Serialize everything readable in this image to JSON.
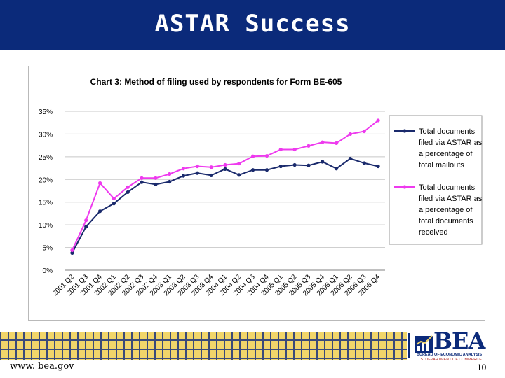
{
  "slide": {
    "title": "ASTAR Success",
    "footer_url": "www. bea.gov",
    "page_number": "10",
    "logo": {
      "name": "BEA",
      "subtitle1": "BUREAU OF ECONOMIC ANALYSIS",
      "subtitle2": "U.S. DEPARTMENT OF COMMERCE"
    },
    "colors": {
      "title_bar": "#0b2a7a",
      "series_mailouts": "#1a2a6c",
      "series_received": "#ee3aee"
    }
  },
  "chart_data": {
    "type": "line",
    "title": "Chart 3: Method of filing used by respondents for Form BE-605",
    "xlabel": "",
    "ylabel": "",
    "ylim": [
      0,
      35
    ],
    "y_ticks": [
      "0%",
      "5%",
      "10%",
      "15%",
      "20%",
      "25%",
      "30%",
      "35%"
    ],
    "grid": true,
    "legend": "right",
    "categories": [
      "2001 Q2",
      "2001 Q3",
      "2001 Q4",
      "2002 Q1",
      "2002 Q2",
      "2002 Q3",
      "2002 Q4",
      "2003 Q1",
      "2003 Q2",
      "2003 Q3",
      "2003 Q4",
      "2004 Q1",
      "2004 Q2",
      "2004 Q3",
      "2004 Q4",
      "2005 Q1",
      "2005 Q2",
      "2005 Q3",
      "2005 Q4",
      "2006 Q1",
      "2006 Q2",
      "2006 Q3",
      "2006 Q4"
    ],
    "series": [
      {
        "name": "Total documents filed via ASTAR as a percentage of total mailouts",
        "legend_lines": [
          "Total documents",
          "filed via ASTAR as",
          "a percentage of",
          "total mailouts"
        ],
        "color": "#1a2a6c",
        "values": [
          3.8,
          9.6,
          13.0,
          14.7,
          17.2,
          19.4,
          18.9,
          19.5,
          20.8,
          21.4,
          20.9,
          22.3,
          21.0,
          22.1,
          22.1,
          22.9,
          23.2,
          23.1,
          23.9,
          22.4,
          24.6,
          23.6,
          22.9
        ]
      },
      {
        "name": "Total documents filed via ASTAR as a percentage of total documents received",
        "legend_lines": [
          "Total documents",
          "filed via ASTAR as",
          "a percentage of",
          "total documents",
          "received"
        ],
        "color": "#ee3aee",
        "values": [
          4.4,
          11.0,
          19.2,
          15.8,
          18.3,
          20.3,
          20.3,
          21.2,
          22.4,
          22.9,
          22.7,
          23.2,
          23.5,
          25.1,
          25.2,
          26.6,
          26.6,
          27.4,
          28.2,
          28.0,
          30.0,
          30.6,
          33.0
        ]
      }
    ]
  }
}
